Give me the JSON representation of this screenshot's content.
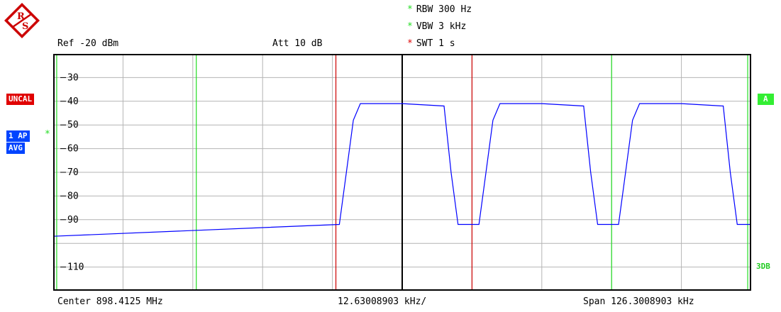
{
  "instrument": {
    "ref_level": "Ref -20 dBm",
    "attenuation": "Att  10 dB",
    "rbw": "RBW 300 Hz",
    "vbw": "VBW 3 kHz",
    "swt": "SWT 1 s"
  },
  "status": {
    "uncal": "UNCAL",
    "trace_detector": "1 AP",
    "trace_mode": "AVG",
    "trace_label": "A",
    "limit_label": "3DB"
  },
  "footer": {
    "center": "Center 898.4125 MHz",
    "div": "12.63008903 kHz/",
    "span": "Span 126.3008903 kHz"
  },
  "colors": {
    "trace": "#0000ff",
    "grid": "#b4b4b4",
    "green_marker": "#22dd22",
    "red_marker": "#cc0000",
    "uncal_bg": "#e00000",
    "ap_bg": "#0044ff",
    "a_bg": "#33ee33"
  },
  "icons": {
    "logo": "rohde-schwarz-logo",
    "star": "asterisk-icon"
  },
  "chart_data": {
    "type": "line",
    "ylim": [
      -120,
      -20
    ],
    "xlim": [
      0,
      10
    ],
    "y_tick_labels": [
      "30",
      "40",
      "50",
      "60",
      "70",
      "80",
      "90",
      "110"
    ],
    "y_ticks": [
      -30,
      -40,
      -50,
      -60,
      -70,
      -80,
      -90,
      -110
    ],
    "green_markers_x": [
      0.05,
      2.05,
      8.0,
      9.95
    ],
    "red_markers_x": [
      4.05,
      6.0
    ],
    "center_line_x": 5,
    "series": [
      {
        "x": [
          0.0,
          4.1,
          4.2,
          4.3,
          4.4,
          5.0,
          5.6,
          5.7,
          5.8,
          6.1,
          6.2,
          6.3,
          6.4,
          7.0,
          7.6,
          7.7,
          7.8,
          8.1,
          8.2,
          8.3,
          8.4,
          9.0,
          9.6,
          9.7,
          9.8,
          10.0
        ],
        "y": [
          -97,
          -92,
          -70,
          -48,
          -41,
          -41,
          -42,
          -70,
          -92,
          -92,
          -70,
          -48,
          -41,
          -41,
          -42,
          -70,
          -92,
          -92,
          -70,
          -48,
          -41,
          -41,
          -42,
          -70,
          -92,
          -92
        ]
      }
    ]
  }
}
